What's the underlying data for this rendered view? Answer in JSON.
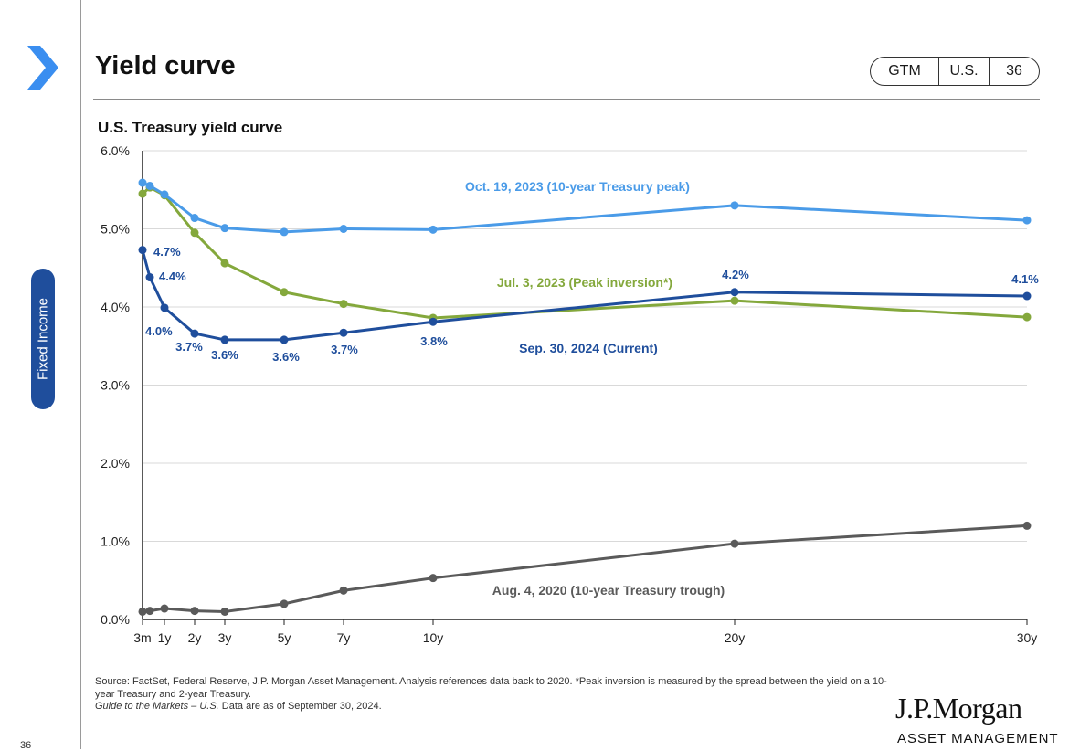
{
  "header": {
    "title": "Yield curve",
    "badge": [
      "GTM",
      "U.S.",
      "36"
    ]
  },
  "sidebar": {
    "section_label": "Fixed Income"
  },
  "chart_data": {
    "type": "line",
    "title": "U.S. Treasury yield curve",
    "xlabel": "",
    "ylabel": "",
    "x": [
      0.25,
      0.5,
      1,
      2,
      3,
      5,
      7,
      10,
      20,
      30
    ],
    "x_tick_labels": [
      "3m",
      "1y",
      "2y",
      "3y",
      "5y",
      "7y",
      "10y",
      "20y",
      "30y"
    ],
    "x_tick_positions": [
      0.25,
      1,
      2,
      3,
      5,
      7,
      10,
      20,
      30
    ],
    "y_ticks": [
      0,
      1,
      2,
      3,
      4,
      5,
      6
    ],
    "y_tick_labels": [
      "0.0%",
      "1.0%",
      "2.0%",
      "3.0%",
      "4.0%",
      "5.0%",
      "6.0%"
    ],
    "ylim": [
      0,
      6
    ],
    "grid": true,
    "series": [
      {
        "name": "Oct. 19, 2023 (10-year Treasury peak)",
        "color": "#4a9be8",
        "values": [
          5.59,
          5.55,
          5.44,
          5.14,
          5.01,
          4.96,
          5.0,
          4.99,
          5.3,
          5.11
        ]
      },
      {
        "name": "Jul. 3, 2023 (Peak inversion*)",
        "color": "#84a83c",
        "values": [
          5.45,
          5.53,
          5.43,
          4.95,
          4.56,
          4.19,
          4.04,
          3.86,
          4.08,
          3.87
        ]
      },
      {
        "name": "Sep. 30, 2024 (Current)",
        "color": "#1f4e9c",
        "values": [
          4.73,
          4.38,
          3.99,
          3.66,
          3.58,
          3.58,
          3.67,
          3.81,
          4.19,
          4.14
        ],
        "data_labels": [
          "4.7%",
          "4.4%",
          "4.0%",
          "3.7%",
          "3.6%",
          "3.6%",
          "3.7%",
          "3.8%",
          "4.2%",
          "4.1%"
        ]
      },
      {
        "name": "Aug. 4, 2020 (10-year Treasury trough)",
        "color": "#5a5a5a",
        "values": [
          0.1,
          0.11,
          0.14,
          0.11,
          0.1,
          0.2,
          0.37,
          0.53,
          0.97,
          1.2
        ]
      }
    ]
  },
  "footnote": {
    "source": "Source: FactSet, Federal Reserve, J.P. Morgan Asset Management. Analysis references data back to 2020. *Peak inversion is measured by the spread between the yield on a 10-year Treasury and 2-year Treasury.",
    "guide": "Guide to the Markets – U.S.",
    "asof": " Data are as of September 30, 2024."
  },
  "logo": {
    "main": "J.P.Morgan",
    "sub": "ASSET MANAGEMENT"
  },
  "page_number": "36"
}
